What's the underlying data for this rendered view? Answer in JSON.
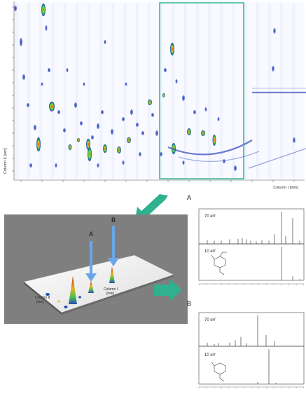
{
  "chromatogram": {
    "y_axis_label": "Column II [sec]",
    "x_axis_label": "Column I [min]"
  },
  "surface_plot": {
    "label_a": "A",
    "label_b": "B",
    "axis_column_ii": "Column II\n[sec]",
    "axis_column_i": "Column I\n[min]"
  },
  "spectra": {
    "label_a": "A",
    "label_b": "B",
    "energy_high": "70 eV",
    "energy_low": "10 eV"
  },
  "colors": {
    "roi_box": "#3cb89a",
    "arrow": "#2fb08f",
    "blob": "#1f3fb8",
    "surface_bg": "#7f7f7f",
    "surface_arrow": "#6aa6e8"
  }
}
